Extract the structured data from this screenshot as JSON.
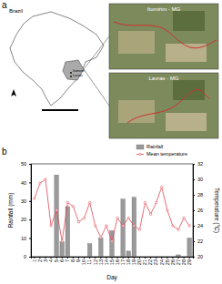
{
  "map": {
    "panel_label": "a",
    "country": "Brazil",
    "places": [
      "Itumirim",
      "Lavras"
    ],
    "insets": [
      "Itumirim - MG",
      "Lavras - MG"
    ]
  },
  "chart_data": {
    "type": "bar",
    "panel_label": "b",
    "categories": [
      "1",
      "2",
      "3",
      "4",
      "5",
      "6",
      "7",
      "8",
      "9",
      "10",
      "11",
      "12",
      "13",
      "14",
      "15",
      "16",
      "17",
      "18",
      "19",
      "20",
      "21",
      "22",
      "23",
      "24",
      "25",
      "26",
      "27",
      "28",
      "29"
    ],
    "x_label": "Day",
    "y_label": "Rainfall (mm)",
    "y2_label": "Temperature (°C)",
    "ylim": [
      0,
      50
    ],
    "yticks": [
      0,
      10,
      20,
      30,
      40,
      50
    ],
    "y2lim": [
      20,
      32
    ],
    "y2ticks": [
      20,
      22,
      24,
      26,
      28,
      30,
      32
    ],
    "legend": "upper right",
    "series": [
      {
        "name": "Rainfall",
        "type": "bar",
        "color": "#9a9a9a",
        "values": [
          0,
          0,
          0,
          0,
          44,
          8,
          27,
          0,
          0,
          0,
          7,
          0,
          10,
          0,
          14,
          0,
          31,
          3,
          32,
          0,
          0,
          0,
          0,
          0,
          0,
          0,
          1,
          0,
          10
        ]
      },
      {
        "name": "Mean temperature",
        "type": "line",
        "axis": "y2",
        "color": "#e04a55",
        "marker": "circle",
        "values": [
          27.5,
          29.5,
          30,
          24,
          26,
          22,
          27,
          26.5,
          24.5,
          25,
          27,
          24,
          22.5,
          24,
          22,
          25,
          24,
          25,
          24,
          23.5,
          27,
          25.5,
          27,
          29,
          26,
          24,
          23.5,
          25,
          24
        ]
      }
    ]
  }
}
